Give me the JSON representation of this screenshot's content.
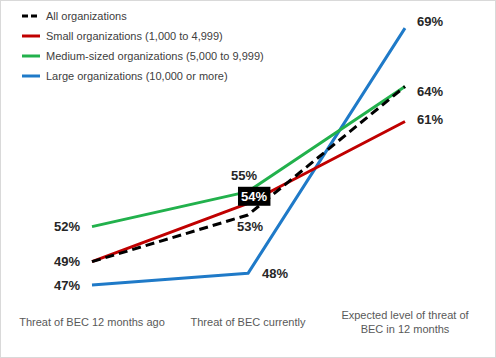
{
  "chart_data": {
    "type": "line",
    "categories": [
      "Threat of BEC 12 months ago",
      "Threat of BEC currently",
      "Expected level of threat of BEC in 12 months"
    ],
    "series": [
      {
        "name": "All organizations",
        "color": "#000000",
        "line_style": "dashed",
        "values": [
          49,
          53,
          64
        ],
        "value_labels": [
          null,
          "53%",
          "64%"
        ]
      },
      {
        "name": "Small organizations (1,000 to 4,999)",
        "color": "#c00000",
        "line_style": "solid",
        "values": [
          49,
          54,
          61
        ],
        "value_labels": [
          "49%",
          "54%",
          "61%"
        ]
      },
      {
        "name": "Medium-sized organizations (5,000 to 9,999)",
        "color": "#22b14c",
        "line_style": "solid",
        "values": [
          52,
          55,
          64
        ],
        "value_labels": [
          "52%",
          "55%",
          null
        ]
      },
      {
        "name": "Large organizations (10,000 or more)",
        "color": "#1f7ac8",
        "line_style": "solid",
        "values": [
          47,
          48,
          69
        ],
        "value_labels": [
          "47%",
          "48%",
          "69%"
        ]
      }
    ],
    "ylim": [
      45,
      70
    ],
    "data_labels": true,
    "tick_labels": "x",
    "grid": false,
    "legend": "top-left"
  }
}
